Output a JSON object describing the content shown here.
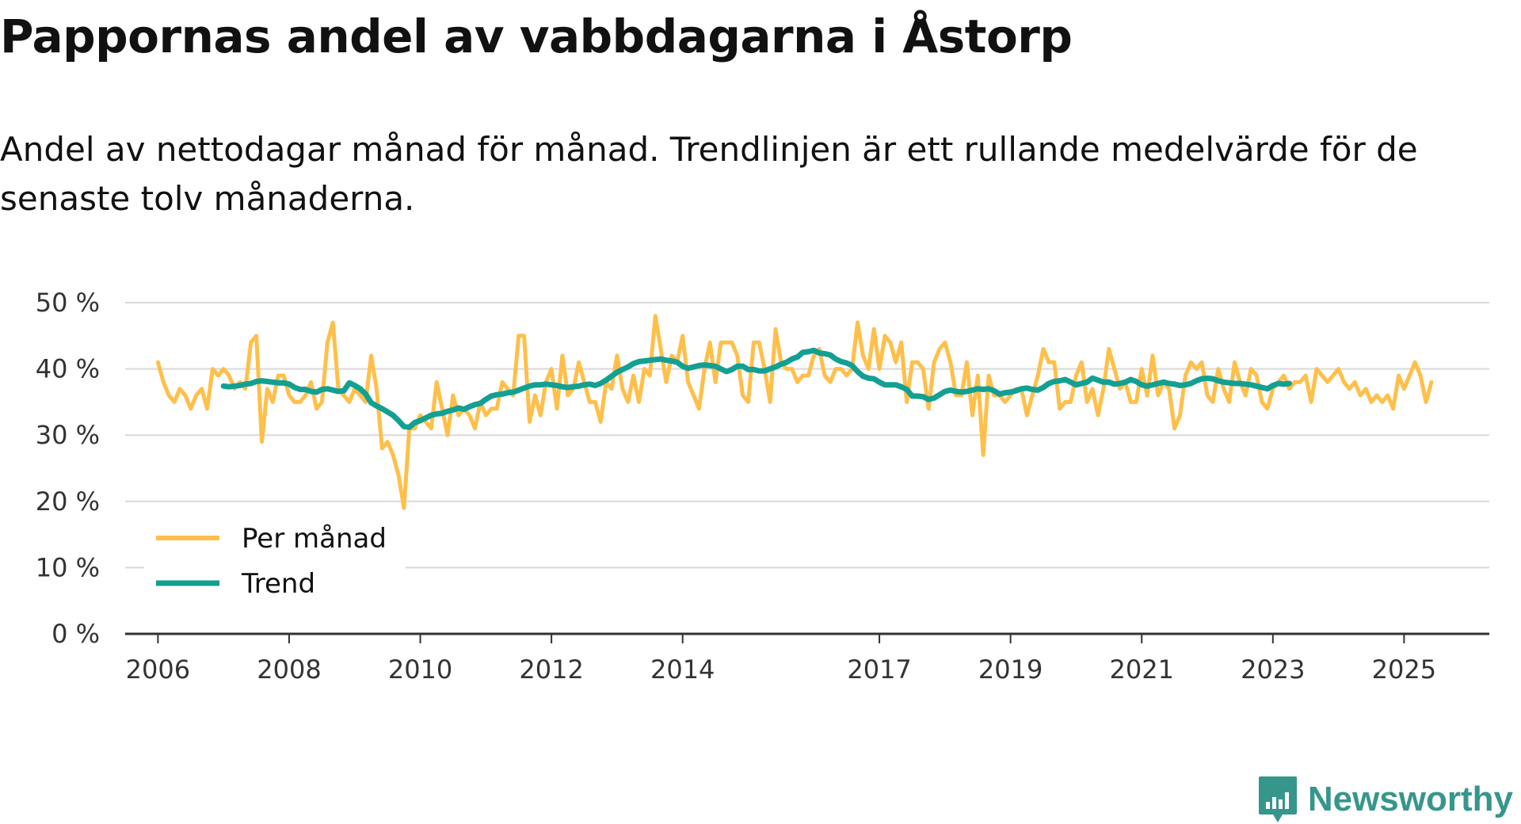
{
  "title": "Pappornas andel av vabbdagarna i Åstorp",
  "subtitle": "Andel av nettodagar månad för månad. Trendlinjen är ett rullande medelvärde för de senaste tolv månaderna.",
  "logo": {
    "text": "Newsworthy",
    "color": "#36968c",
    "icon": "bar-chart-badge-icon"
  },
  "colors": {
    "monthly": "#ffbf4a",
    "trend": "#13a093",
    "grid": "#d9d9d9",
    "axis": "#333333"
  },
  "chart_data": {
    "type": "line",
    "title": "Pappornas andel av vabbdagarna i Åstorp",
    "xlabel": "",
    "ylabel": "",
    "ylim": [
      0,
      50
    ],
    "xlim": [
      2005.5,
      2026.3
    ],
    "y_ticks": [
      0,
      10,
      20,
      30,
      40,
      50
    ],
    "y_tick_labels": [
      "0 %",
      "10 %",
      "20 %",
      "30 %",
      "40 %",
      "50 %"
    ],
    "x_ticks": [
      2006,
      2008,
      2010,
      2012,
      2014,
      2017,
      2019,
      2021,
      2023,
      2025
    ],
    "x_tick_labels": [
      "2006",
      "2008",
      "2010",
      "2012",
      "2014",
      "2017",
      "2019",
      "2021",
      "2023",
      "2025"
    ],
    "legend": {
      "position": "bottom-left",
      "entries": [
        "Per månad",
        "Trend"
      ]
    },
    "series": [
      {
        "name": "Per månad",
        "start_year": 2006,
        "start_month": 1,
        "values": [
          41,
          38,
          36,
          35,
          37,
          36,
          34,
          36,
          37,
          34,
          40,
          39,
          40,
          39,
          37,
          38,
          37,
          44,
          45,
          29,
          37,
          35,
          39,
          39,
          36,
          35,
          35,
          36,
          38,
          34,
          35,
          44,
          47,
          37,
          36,
          35,
          37,
          36,
          35,
          42,
          37,
          28,
          29,
          27,
          24,
          19,
          31,
          31,
          33,
          32,
          31,
          38,
          34,
          30,
          36,
          33,
          34,
          33,
          31,
          35,
          33,
          34,
          34,
          38,
          37,
          36,
          45,
          45,
          32,
          36,
          33,
          38,
          40,
          34,
          42,
          36,
          37,
          41,
          38,
          35,
          35,
          32,
          38,
          37,
          42,
          37,
          35,
          39,
          35,
          40,
          39,
          48,
          43,
          38,
          42,
          41,
          45,
          38,
          36,
          34,
          40,
          44,
          38,
          44,
          44,
          44,
          42,
          36,
          35,
          44,
          44,
          40,
          35,
          46,
          41,
          40,
          40,
          38,
          39,
          39,
          42,
          43,
          39,
          38,
          40,
          40,
          39,
          40,
          47,
          42,
          40,
          46,
          40,
          45,
          44,
          41,
          44,
          35,
          41,
          41,
          40,
          34,
          41,
          43,
          44,
          41,
          36,
          36,
          41,
          33,
          39,
          27,
          39,
          36,
          36,
          35,
          36,
          37,
          37,
          33,
          36,
          39,
          43,
          41,
          41,
          34,
          35,
          35,
          39,
          41,
          35,
          37,
          33,
          37,
          43,
          40,
          37,
          38,
          35,
          35,
          40,
          36,
          42,
          36,
          38,
          37,
          31,
          33,
          39,
          41,
          40,
          41,
          36,
          35,
          40,
          37,
          35,
          41,
          38,
          36,
          40,
          39,
          35,
          34,
          37,
          38,
          39,
          37,
          38,
          38,
          39,
          35,
          40,
          39,
          38,
          39,
          40,
          38,
          37,
          38,
          36,
          37,
          35,
          36,
          35,
          36,
          34,
          39,
          37,
          39,
          41,
          39,
          35,
          38
        ]
      },
      {
        "name": "Trend",
        "start_year": 2007,
        "start_month": 1,
        "values": [
          37.4,
          37.3,
          37.4,
          37.5,
          37.7,
          37.8,
          38.1,
          38.2,
          38.1,
          38.0,
          37.9,
          37.9,
          37.7,
          37.2,
          36.9,
          36.9,
          36.6,
          36.5,
          36.9,
          37.0,
          36.8,
          36.6,
          36.7,
          37.9,
          37.5,
          37.0,
          36.2,
          34.9,
          34.4,
          34.0,
          33.5,
          33.0,
          32.2,
          31.3,
          31.2,
          31.9,
          32.2,
          32.6,
          33.0,
          33.2,
          33.3,
          33.6,
          33.8,
          34.1,
          33.9,
          34.3,
          34.6,
          34.8,
          35.4,
          35.9,
          36.1,
          36.2,
          36.4,
          36.5,
          36.8,
          37.1,
          37.4,
          37.6,
          37.6,
          37.7,
          37.6,
          37.5,
          37.3,
          37.2,
          37.3,
          37.4,
          37.6,
          37.7,
          37.5,
          37.8,
          38.3,
          38.9,
          39.5,
          39.9,
          40.3,
          40.8,
          41.1,
          41.2,
          41.3,
          41.4,
          41.5,
          41.3,
          41.2,
          41.0,
          40.4,
          40.1,
          40.3,
          40.5,
          40.6,
          40.5,
          40.4,
          40.0,
          39.6,
          39.9,
          40.4,
          40.4,
          39.9,
          39.9,
          39.7,
          39.7,
          40.0,
          40.3,
          40.7,
          41.0,
          41.5,
          41.8,
          42.5,
          42.6,
          42.8,
          42.4,
          42.3,
          42.1,
          41.5,
          41.1,
          40.9,
          40.5,
          39.6,
          38.9,
          38.6,
          38.5,
          38.0,
          37.6,
          37.6,
          37.6,
          37.3,
          36.9,
          35.9,
          35.9,
          35.8,
          35.4,
          35.6,
          36.1,
          36.6,
          36.8,
          36.6,
          36.5,
          36.6,
          36.8,
          37.0,
          36.9,
          37.0,
          36.7,
          36.2,
          36.4,
          36.5,
          36.7,
          37.0,
          37.1,
          36.9,
          36.8,
          37.2,
          37.8,
          38.1,
          38.2,
          38.4,
          38.0,
          37.6,
          37.8,
          38.0,
          38.6,
          38.3,
          38.0,
          38.0,
          37.7,
          37.8,
          38.0,
          38.4,
          38.1,
          37.6,
          37.4,
          37.6,
          37.8,
          38.0,
          37.8,
          37.7,
          37.5,
          37.6,
          37.8,
          38.2,
          38.5,
          38.6,
          38.5,
          38.2,
          38.0,
          37.9,
          37.8,
          37.8,
          37.7,
          37.6,
          37.4,
          37.2,
          37.0,
          37.5,
          37.8,
          37.7,
          37.8
        ]
      }
    ]
  }
}
